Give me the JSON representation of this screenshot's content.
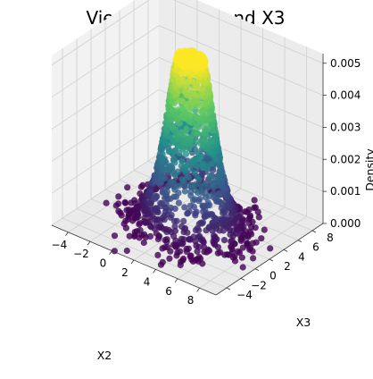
{
  "chart_data": {
    "type": "scatter",
    "title": "View from : X2 and X3",
    "xlabel": "X2",
    "ylabel": "X3",
    "zlabel": "Density",
    "x_ticks": [
      "−4",
      "−2",
      "0",
      "2",
      "4",
      "6",
      "8"
    ],
    "y_ticks": [
      "−4",
      "−2",
      "0",
      "2",
      "4",
      "6",
      "8"
    ],
    "z_ticks": [
      "0.000",
      "0.001",
      "0.002",
      "0.003",
      "0.004",
      "0.005"
    ],
    "xlim": [
      -5.5,
      9.5
    ],
    "ylim": [
      -5.5,
      9.5
    ],
    "zlim": [
      0,
      0.0053
    ],
    "grid": true,
    "colormap": "viridis",
    "modes": [
      {
        "x": 1.5,
        "y": 3.0,
        "peak": 0.0049
      },
      {
        "x": 2.8,
        "y": 1.5,
        "peak": 0.0044
      }
    ],
    "marker_color_low": "#440154",
    "marker_color_high": "#fde725"
  }
}
